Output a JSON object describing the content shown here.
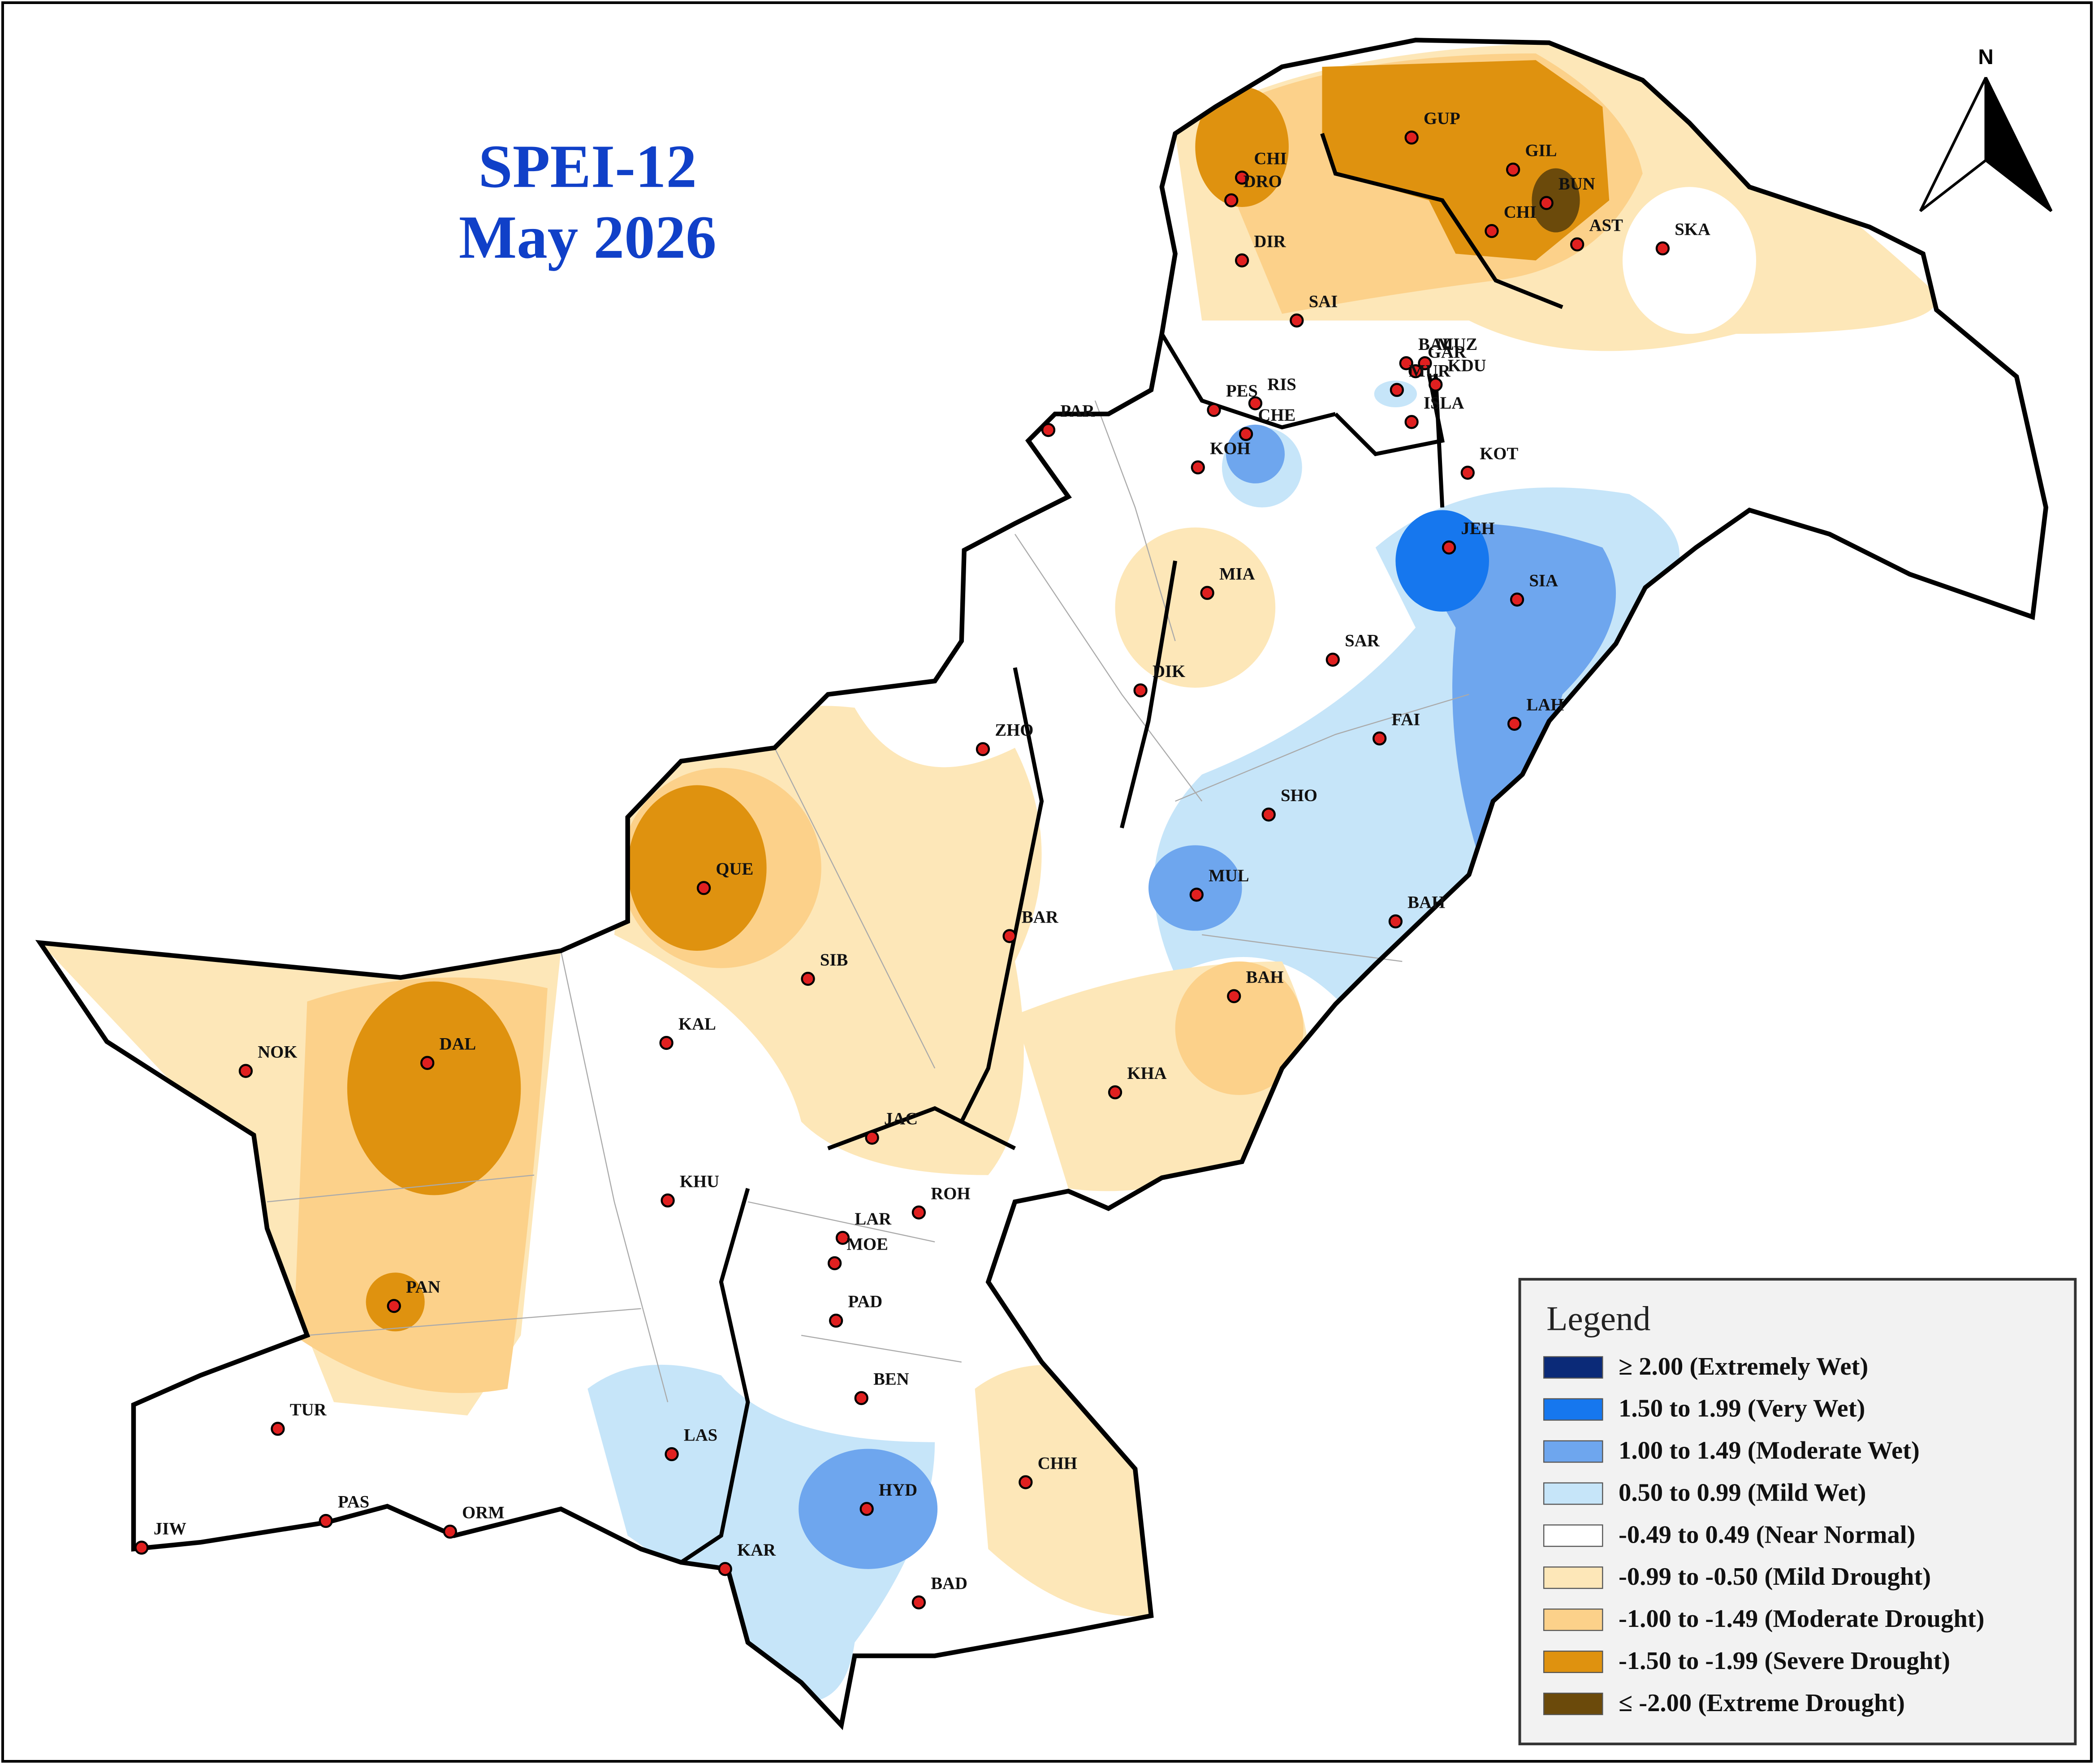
{
  "title": "SPEI-12",
  "subtitle": "May 2026",
  "north": "N",
  "legend": {
    "title": "Legend",
    "items": [
      {
        "label": "≥ 2.00 (Extremely Wet)",
        "color": "#0b2a78"
      },
      {
        "label": "1.50 to 1.99 (Very Wet)",
        "color": "#1677ee"
      },
      {
        "label": "1.00 to 1.49 (Moderate Wet)",
        "color": "#6ea6ee"
      },
      {
        "label": "0.50 to 0.99 (Mild Wet)",
        "color": "#c6e5f9"
      },
      {
        "label": "-0.49 to 0.49 (Near Normal)",
        "color": "#ffffff"
      },
      {
        "label": "-0.99 to -0.50 (Mild Drought)",
        "color": "#fde7b8"
      },
      {
        "label": "-1.00 to -1.49 (Moderate Drought)",
        "color": "#fcd18a"
      },
      {
        "label": "-1.50 to -1.99 (Severe Drought)",
        "color": "#df920f"
      },
      {
        "label": "≤ -2.00 (Extreme Drought)",
        "color": "#6b4a0b"
      }
    ]
  },
  "stations": [
    "CHI",
    "DRO",
    "DIR",
    "GUP",
    "GIL",
    "BUN",
    "CHI",
    "AST",
    "SKA",
    "SAI",
    "BAL",
    "MUZ",
    "GAR",
    "KDU",
    "PES",
    "RIS",
    "CHE",
    "PAR",
    "KOH",
    "MUR",
    "ISLA",
    "KOT",
    "JEH",
    "SIA",
    "MIA",
    "SAR",
    "DIK",
    "ZHO",
    "LAH",
    "FAI",
    "SHO",
    "QUE",
    "MUL",
    "BAH",
    "BAR",
    "SIB",
    "BAH",
    "KAL",
    "NOK",
    "DAL",
    "KHA",
    "JAC",
    "KHU",
    "ROH",
    "LAR",
    "MOE",
    "PAD",
    "PAN",
    "BEN",
    "TUR",
    "LAS",
    "CHH",
    "HYD",
    "PAS",
    "ORM",
    "JIW",
    "KAR",
    "BAD"
  ]
}
